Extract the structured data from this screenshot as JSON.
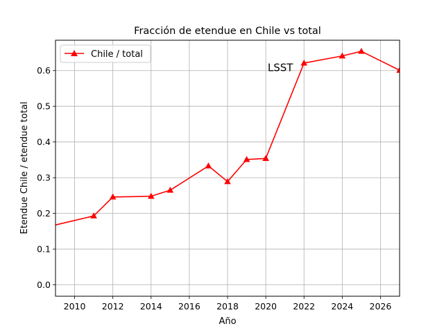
{
  "chart_data": {
    "type": "line",
    "title": "Fracción de etendue en Chile vs total",
    "xlabel": "Año",
    "ylabel": "Etendue Chile / etendue total",
    "xlim": [
      2009,
      2027
    ],
    "ylim": [
      -0.032,
      0.685
    ],
    "x_ticks": [
      2010,
      2012,
      2014,
      2016,
      2018,
      2020,
      2022,
      2024,
      2026
    ],
    "y_ticks": [
      0.0,
      0.1,
      0.2,
      0.3,
      0.4,
      0.5,
      0.6
    ],
    "grid": true,
    "legend_position": "top-left",
    "series": [
      {
        "name": "Chile / total",
        "color": "#ff0000",
        "marker": "triangle-up",
        "x": [
          2008,
          2011,
          2012,
          2014,
          2015,
          2017,
          2018,
          2019,
          2020,
          2022,
          2024,
          2025,
          2027
        ],
        "y": [
          0.155,
          0.193,
          0.246,
          0.248,
          0.265,
          0.333,
          0.289,
          0.351,
          0.354,
          0.621,
          0.641,
          0.654,
          0.601
        ]
      }
    ],
    "annotations": [
      {
        "text": "LSST",
        "x": 2020.1,
        "y": 0.6
      }
    ]
  }
}
